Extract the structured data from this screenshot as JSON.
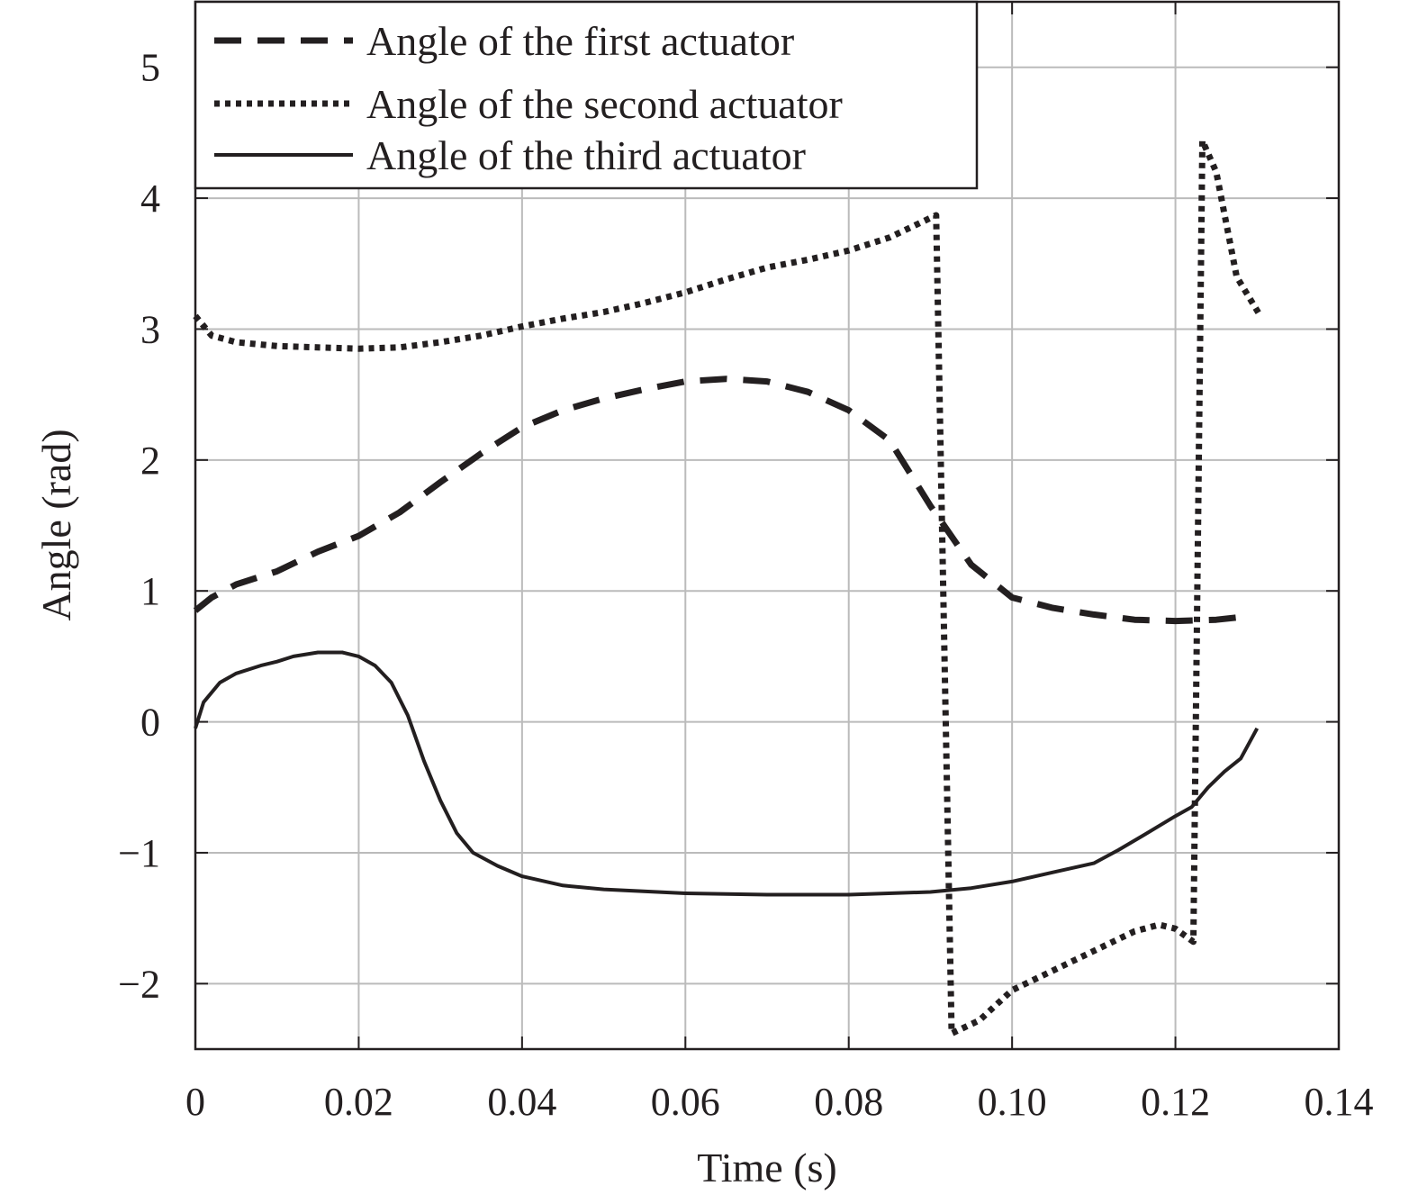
{
  "chart_data": {
    "type": "line",
    "title": "",
    "xlabel": "Time (s)",
    "ylabel": "Angle (rad)",
    "xlim": [
      0,
      0.14
    ],
    "ylim": [
      -2.5,
      5.5
    ],
    "xticks": [
      0,
      0.02,
      0.04,
      0.06,
      0.08,
      0.1,
      0.12,
      0.14
    ],
    "xtick_labels": [
      "0",
      "0.02",
      "0.04",
      "0.06",
      "0.08",
      "0.10",
      "0.12",
      "0.14"
    ],
    "yticks": [
      -2,
      -1,
      0,
      1,
      2,
      3,
      4,
      5
    ],
    "ytick_labels": [
      "−2",
      "−1",
      "0",
      "1",
      "2",
      "3",
      "4",
      "5"
    ],
    "grid": true,
    "legend_position": "top-left",
    "line_color": "#231f20",
    "grid_color": "#bbbbbb",
    "series": [
      {
        "name": "Angle of the first actuator",
        "style": "dashed",
        "x": [
          0,
          0.002,
          0.005,
          0.01,
          0.015,
          0.02,
          0.025,
          0.03,
          0.035,
          0.04,
          0.045,
          0.05,
          0.055,
          0.06,
          0.065,
          0.07,
          0.075,
          0.08,
          0.085,
          0.09,
          0.095,
          0.1,
          0.105,
          0.11,
          0.115,
          0.12,
          0.125,
          0.128
        ],
        "y": [
          0.85,
          0.95,
          1.05,
          1.15,
          1.3,
          1.42,
          1.6,
          1.83,
          2.05,
          2.25,
          2.38,
          2.47,
          2.54,
          2.6,
          2.62,
          2.6,
          2.52,
          2.38,
          2.15,
          1.65,
          1.2,
          0.95,
          0.87,
          0.82,
          0.78,
          0.77,
          0.78,
          0.8
        ]
      },
      {
        "name": "Angle of the second actuator",
        "style": "dotted",
        "x": [
          0,
          0.002,
          0.005,
          0.01,
          0.02,
          0.025,
          0.03,
          0.035,
          0.04,
          0.045,
          0.05,
          0.055,
          0.06,
          0.065,
          0.07,
          0.075,
          0.08,
          0.085,
          0.0907,
          0.0926,
          0.096,
          0.1,
          0.105,
          0.11,
          0.115,
          0.118,
          0.12,
          0.1222,
          0.1233,
          0.125,
          0.1275,
          0.1304
        ],
        "y": [
          3.1,
          2.95,
          2.9,
          2.87,
          2.85,
          2.86,
          2.9,
          2.95,
          3.02,
          3.08,
          3.13,
          3.2,
          3.28,
          3.38,
          3.47,
          3.53,
          3.6,
          3.7,
          3.87,
          -2.38,
          -2.28,
          -2.05,
          -1.9,
          -1.75,
          -1.6,
          -1.55,
          -1.58,
          -1.68,
          4.44,
          4.2,
          3.4,
          3.1
        ]
      },
      {
        "name": "Angle of the third actuator",
        "style": "solid",
        "x": [
          0,
          0.001,
          0.003,
          0.005,
          0.008,
          0.01,
          0.012,
          0.015,
          0.018,
          0.02,
          0.022,
          0.024,
          0.026,
          0.028,
          0.03,
          0.032,
          0.034,
          0.037,
          0.04,
          0.045,
          0.05,
          0.06,
          0.07,
          0.08,
          0.09,
          0.095,
          0.1,
          0.105,
          0.11,
          0.113,
          0.116,
          0.12,
          0.122,
          0.124,
          0.126,
          0.128,
          0.13
        ],
        "y": [
          -0.05,
          0.15,
          0.3,
          0.37,
          0.43,
          0.46,
          0.5,
          0.53,
          0.53,
          0.5,
          0.43,
          0.3,
          0.05,
          -0.3,
          -0.6,
          -0.85,
          -1.0,
          -1.1,
          -1.18,
          -1.25,
          -1.28,
          -1.31,
          -1.32,
          -1.32,
          -1.3,
          -1.27,
          -1.22,
          -1.15,
          -1.08,
          -0.98,
          -0.87,
          -0.72,
          -0.65,
          -0.5,
          -0.38,
          -0.28,
          -0.05
        ]
      }
    ]
  }
}
